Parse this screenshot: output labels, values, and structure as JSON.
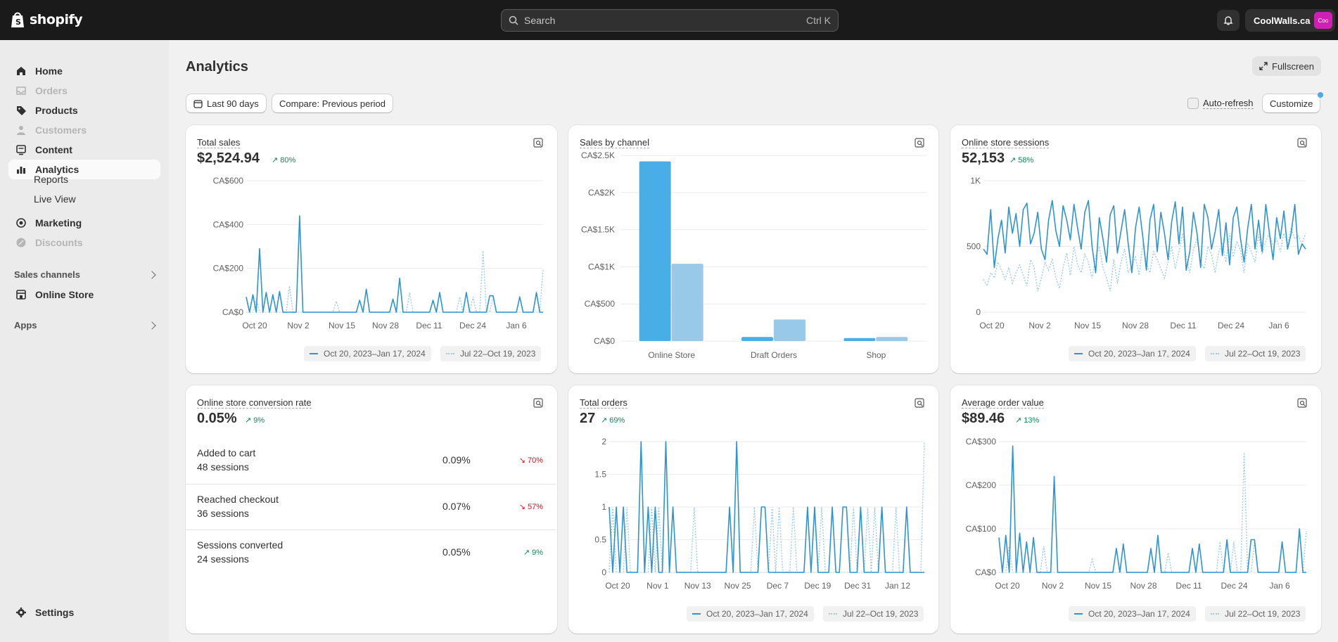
{
  "brand": {
    "logo_text": "shopify",
    "logo_icon": "shopify-bag-icon"
  },
  "search": {
    "placeholder": "Search",
    "shortcut": "Ctrl K"
  },
  "topbar": {
    "store_name": "CoolWalls.ca",
    "avatar_text": "Coo"
  },
  "sidebar": {
    "items": [
      {
        "label": "Home",
        "icon": "home-icon",
        "state": "normal"
      },
      {
        "label": "Orders",
        "icon": "inbox-icon",
        "state": "disabled"
      },
      {
        "label": "Products",
        "icon": "tag-icon",
        "state": "normal"
      },
      {
        "label": "Customers",
        "icon": "person-icon",
        "state": "disabled"
      },
      {
        "label": "Content",
        "icon": "content-icon",
        "state": "normal"
      },
      {
        "label": "Analytics",
        "icon": "bar-chart-icon",
        "state": "active"
      }
    ],
    "sub_items": [
      "Reports",
      "Live View"
    ],
    "items2": [
      {
        "label": "Marketing",
        "icon": "target-icon",
        "state": "normal"
      },
      {
        "label": "Discounts",
        "icon": "discount-icon",
        "state": "disabled"
      }
    ],
    "sales_channels_label": "Sales channels",
    "online_store_label": "Online Store",
    "apps_label": "Apps",
    "settings_label": "Settings"
  },
  "page": {
    "title": "Analytics",
    "fullscreen_label": "Fullscreen",
    "date_range_label": "Last 90 days",
    "compare_label": "Compare: Previous period",
    "auto_refresh_label": "Auto-refresh",
    "customize_label": "Customize"
  },
  "legend": {
    "current": "Oct 20, 2023–Jan 17, 2024",
    "previous": "Jul 22–Oct 19, 2023"
  },
  "colors": {
    "primary": "#2d94d1",
    "comparison": "#9ccbe8",
    "bar_current": "#4aaee6",
    "bar_previous": "#98c9e9",
    "positive": "#0c8a55",
    "negative": "#c4141c"
  },
  "cards": {
    "total_sales": {
      "title": "Total sales",
      "value": "$2,524.94",
      "trend": "80%"
    },
    "sales_by_channel": {
      "title": "Sales by channel"
    },
    "sessions": {
      "title": "Online store sessions",
      "value": "52,153",
      "trend": "58%"
    },
    "conversion": {
      "title": "Online store conversion rate",
      "value": "0.05%",
      "trend": "9%",
      "rows": [
        {
          "label": "Added to cart",
          "sub": "48 sessions",
          "pct": "0.09%",
          "trend": "70%",
          "direction": "down"
        },
        {
          "label": "Reached checkout",
          "sub": "36 sessions",
          "pct": "0.07%",
          "trend": "57%",
          "direction": "down"
        },
        {
          "label": "Sessions converted",
          "sub": "24 sessions",
          "pct": "0.05%",
          "trend": "9%",
          "direction": "up"
        }
      ]
    },
    "total_orders": {
      "title": "Total orders",
      "value": "27",
      "trend": "69%"
    },
    "aov": {
      "title": "Average order value",
      "value": "$89.46",
      "trend": "13%"
    }
  },
  "chart_data": [
    {
      "id": "total_sales",
      "type": "line",
      "yticks": [
        "CA$0",
        "CA$200",
        "CA$400",
        "CA$600"
      ],
      "ylim": [
        0,
        600
      ],
      "xticks": [
        "Oct 20",
        "Nov 2",
        "Nov 15",
        "Nov 28",
        "Dec 11",
        "Dec 24",
        "Jan 6"
      ],
      "series": [
        {
          "name": "Oct 20, 2023–Jan 17, 2024",
          "values": [
            70,
            0,
            80,
            0,
            290,
            0,
            90,
            0,
            80,
            0,
            95,
            0,
            0,
            0,
            0,
            0,
            440,
            0,
            0,
            0,
            0,
            0,
            0,
            0,
            0,
            0,
            0,
            0,
            0,
            0,
            0,
            0,
            0,
            0,
            55,
            0,
            105,
            0,
            0,
            0,
            0,
            0,
            0,
            0,
            60,
            0,
            155,
            0,
            0,
            0,
            0,
            0,
            0,
            0,
            0,
            0,
            55,
            0,
            90,
            0,
            0,
            0,
            0,
            0,
            0,
            0,
            90,
            0,
            0,
            0,
            0,
            0,
            0,
            75,
            75,
            0,
            0,
            0,
            0,
            0,
            0,
            0,
            70,
            0,
            0,
            0,
            0,
            90,
            0,
            0
          ]
        },
        {
          "name": "Jul 22–Oct 19, 2023",
          "values": [
            0,
            0,
            0,
            60,
            0,
            0,
            0,
            0,
            0,
            0,
            0,
            0,
            0,
            120,
            0,
            0,
            0,
            0,
            0,
            0,
            0,
            0,
            0,
            0,
            0,
            0,
            0,
            50,
            0,
            0,
            0,
            0,
            0,
            0,
            0,
            0,
            0,
            0,
            0,
            0,
            0,
            0,
            0,
            0,
            0,
            0,
            0,
            0,
            0,
            90,
            0,
            0,
            0,
            0,
            0,
            0,
            0,
            0,
            0,
            0,
            0,
            0,
            0,
            0,
            70,
            0,
            0,
            0,
            70,
            0,
            0,
            280,
            0,
            0,
            70,
            0,
            0,
            0,
            0,
            0,
            0,
            0,
            0,
            0,
            0,
            0,
            0,
            0,
            0,
            200
          ]
        }
      ]
    },
    {
      "id": "sales_by_channel",
      "type": "bar",
      "yticks": [
        "CA$0",
        "CA$500",
        "CA$1K",
        "CA$1.5K",
        "CA$2K",
        "CA$2.5K"
      ],
      "ylim": [
        0,
        2500
      ],
      "categories": [
        "Online Store",
        "Draft Orders",
        "Shop"
      ],
      "series": [
        {
          "name": "Oct 20, 2023–Jan 17, 2024",
          "values": [
            2420,
            55,
            40
          ]
        },
        {
          "name": "Jul 22–Oct 19, 2023",
          "values": [
            1040,
            290,
            55
          ]
        }
      ]
    },
    {
      "id": "sessions",
      "type": "line",
      "yticks": [
        "0",
        "500",
        "1K"
      ],
      "ylim": [
        0,
        1000
      ],
      "xticks": [
        "Oct 20",
        "Nov 2",
        "Nov 15",
        "Nov 28",
        "Dec 11",
        "Dec 24",
        "Jan 6"
      ],
      "series": [
        {
          "name": "Oct 20, 2023–Jan 17, 2024",
          "values": [
            480,
            440,
            780,
            340,
            560,
            700,
            450,
            800,
            600,
            750,
            500,
            780,
            830,
            520,
            600,
            760,
            480,
            400,
            700,
            850,
            620,
            500,
            810,
            700,
            550,
            820,
            640,
            480,
            760,
            850,
            500,
            300,
            720,
            560,
            380,
            740,
            810,
            450,
            620,
            780,
            520,
            300,
            640,
            800,
            580,
            320,
            700,
            820,
            460,
            760,
            600,
            400,
            690,
            840,
            520,
            800,
            320,
            460,
            760,
            600,
            340,
            820,
            720,
            480,
            610,
            780,
            430,
            680,
            360,
            720,
            800,
            560,
            380,
            640,
            820,
            480,
            700,
            460,
            820,
            600,
            400,
            720,
            560,
            770,
            480,
            600,
            820,
            440,
            520,
            480
          ]
        },
        {
          "name": "Jul 22–Oct 19, 2023",
          "values": [
            250,
            200,
            300,
            260,
            380,
            320,
            250,
            340,
            220,
            300,
            360,
            280,
            200,
            400,
            340,
            160,
            260,
            380,
            320,
            400,
            260,
            180,
            340,
            450,
            280,
            500,
            360,
            300,
            440,
            380,
            260,
            420,
            500,
            340,
            260,
            160,
            400,
            220,
            380,
            480,
            300,
            350,
            420,
            280,
            520,
            380,
            300,
            460,
            400,
            330,
            260,
            380,
            500,
            330,
            460,
            600,
            420,
            300,
            480,
            560,
            380,
            330,
            500,
            440,
            300,
            460,
            520,
            380,
            600,
            420,
            540,
            470,
            300,
            520,
            460,
            380,
            590,
            440,
            540,
            600,
            500,
            560,
            460,
            600,
            520,
            640,
            560,
            580,
            520,
            600
          ]
        }
      ]
    },
    {
      "id": "total_orders",
      "type": "line",
      "yticks": [
        "0",
        "0.5",
        "1",
        "1.5",
        "2"
      ],
      "ylim": [
        0,
        2
      ],
      "xticks": [
        "Oct 20",
        "Nov 1",
        "Nov 13",
        "Nov 25",
        "Dec 7",
        "Dec 19",
        "Dec 31",
        "Jan 12"
      ],
      "series": [
        {
          "name": "Oct 20, 2023–Jan 17, 2024",
          "values": [
            1,
            0,
            1,
            0,
            1,
            0,
            0,
            0,
            0,
            2,
            0,
            1,
            0,
            1,
            0,
            0,
            2,
            0,
            1,
            0,
            0,
            0,
            0,
            0,
            0,
            0,
            0,
            0,
            0,
            0,
            0,
            0,
            0,
            0,
            1,
            0,
            2,
            0,
            0,
            0,
            0,
            0,
            0,
            1,
            1,
            0,
            0,
            0,
            0,
            0,
            0,
            0,
            0,
            0,
            0,
            0,
            1,
            0,
            1,
            0,
            0,
            0,
            0,
            1,
            0,
            0,
            1,
            1,
            0,
            0,
            0,
            1,
            0,
            0,
            0,
            0,
            0,
            1,
            0,
            0,
            0,
            0,
            0,
            0,
            1,
            0,
            0,
            0,
            0,
            0
          ]
        },
        {
          "name": "Jul 22–Oct 19, 2023",
          "values": [
            0,
            1,
            0,
            0,
            0,
            1,
            0,
            0,
            0,
            0,
            0,
            0,
            1,
            0,
            1,
            0,
            0,
            0,
            0,
            0,
            0,
            0,
            0,
            0,
            1,
            0,
            0,
            0,
            0,
            0,
            0,
            0,
            0,
            0,
            0,
            0,
            0,
            0,
            0,
            0,
            0,
            1,
            0,
            0,
            0,
            0,
            1,
            0,
            1,
            0,
            0,
            0,
            1,
            0,
            0,
            0,
            0,
            0,
            0,
            0,
            1,
            0,
            0,
            0,
            0,
            0,
            0,
            0,
            0,
            1,
            0,
            0,
            0,
            1,
            0,
            1,
            0,
            0,
            0,
            0,
            0,
            1,
            0,
            0,
            0,
            0,
            0,
            0,
            0,
            2
          ]
        }
      ]
    },
    {
      "id": "aov",
      "type": "line",
      "yticks": [
        "CA$0",
        "CA$100",
        "CA$200",
        "CA$300"
      ],
      "ylim": [
        0,
        300
      ],
      "xticks": [
        "Oct 20",
        "Nov 2",
        "Nov 15",
        "Nov 28",
        "Dec 11",
        "Dec 24",
        "Jan 6"
      ],
      "series": [
        {
          "name": "Oct 20, 2023–Jan 17, 2024",
          "values": [
            80,
            0,
            85,
            0,
            290,
            0,
            90,
            0,
            70,
            0,
            80,
            0,
            0,
            0,
            0,
            0,
            220,
            0,
            0,
            0,
            0,
            0,
            0,
            0,
            0,
            0,
            0,
            0,
            0,
            0,
            0,
            0,
            0,
            0,
            55,
            0,
            65,
            0,
            0,
            0,
            0,
            0,
            0,
            0,
            55,
            0,
            85,
            0,
            0,
            0,
            0,
            0,
            0,
            0,
            0,
            0,
            55,
            0,
            65,
            0,
            0,
            0,
            0,
            0,
            0,
            0,
            75,
            0,
            0,
            0,
            0,
            0,
            0,
            75,
            75,
            0,
            0,
            0,
            0,
            0,
            0,
            0,
            70,
            0,
            0,
            0,
            0,
            100,
            0,
            0
          ]
        },
        {
          "name": "Jul 22–Oct 19, 2023",
          "values": [
            0,
            0,
            0,
            60,
            0,
            0,
            0,
            0,
            0,
            0,
            0,
            0,
            0,
            60,
            0,
            0,
            0,
            0,
            0,
            0,
            0,
            0,
            0,
            0,
            0,
            0,
            0,
            30,
            0,
            0,
            0,
            0,
            0,
            0,
            0,
            0,
            0,
            0,
            0,
            0,
            0,
            0,
            0,
            0,
            0,
            0,
            0,
            0,
            0,
            45,
            0,
            0,
            0,
            0,
            0,
            0,
            0,
            0,
            0,
            0,
            0,
            0,
            0,
            0,
            70,
            0,
            0,
            0,
            70,
            0,
            0,
            275,
            0,
            0,
            70,
            0,
            0,
            0,
            0,
            0,
            0,
            0,
            0,
            0,
            0,
            0,
            0,
            0,
            0,
            95
          ]
        }
      ]
    }
  ]
}
